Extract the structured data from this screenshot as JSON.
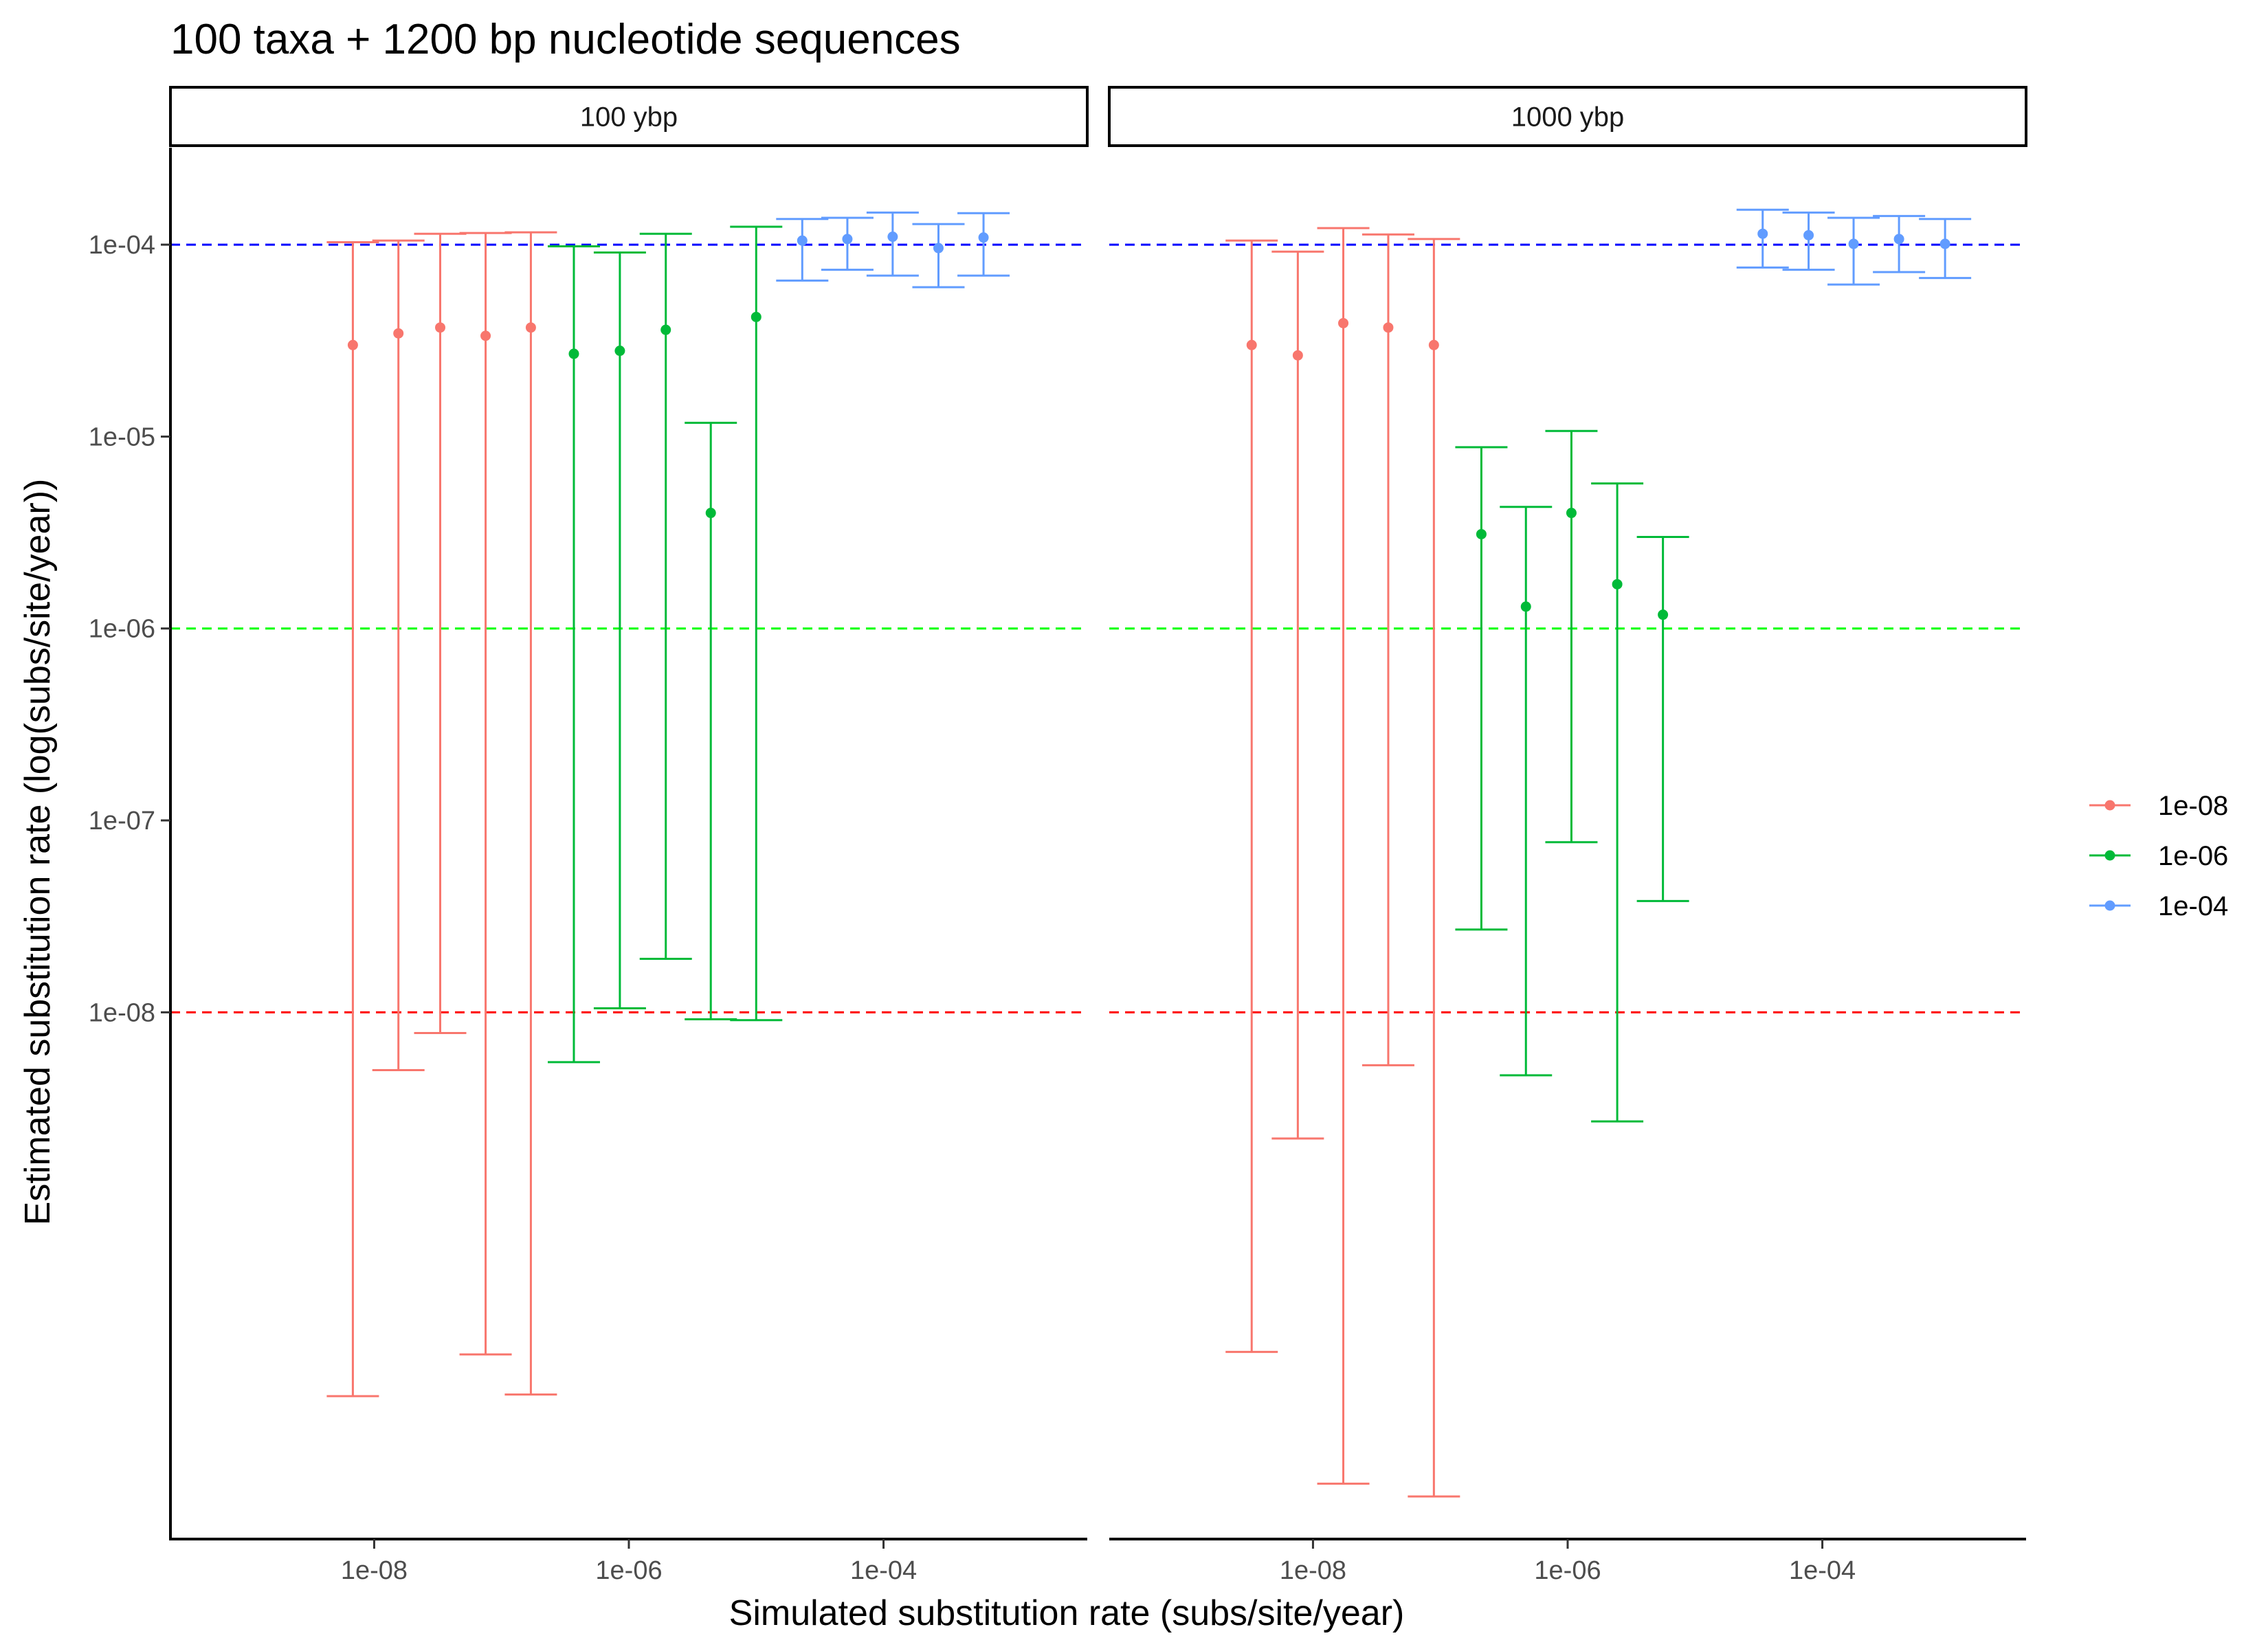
{
  "chart_data": {
    "type": "errorbar",
    "title": "100 taxa + 1200 bp nucleotide sequences",
    "xlabel": "Simulated substitution rate (subs/site/year)",
    "ylabel": "Estimated substitution rate (log(subs/site/year))",
    "x_scale": "log10",
    "y_scale": "log10",
    "x_ticks": [
      "1e-08",
      "1e-06",
      "1e-04"
    ],
    "y_ticks": [
      "1e-08",
      "1e-07",
      "1e-06",
      "1e-05",
      "1e-04"
    ],
    "ylim": [
      1.8e-11,
      0.00032
    ],
    "legend": {
      "position": "right",
      "entries": [
        "1e-08",
        "1e-06",
        "1e-04"
      ]
    },
    "colors": {
      "1e-08": "#F8766D",
      "1e-06": "#00BA38",
      "1e-04": "#619CFF"
    },
    "reference_lines": [
      {
        "y": 0.0001,
        "color": "#0000FF",
        "style": "dashed"
      },
      {
        "y": 1e-06,
        "color": "#00FF00",
        "style": "dashed"
      },
      {
        "y": 1e-08,
        "color": "#FF0000",
        "style": "dashed"
      }
    ],
    "panels": [
      {
        "label": "100 ybp",
        "series": [
          {
            "name": "1e-08",
            "points": [
              {
                "x": 6.8e-09,
                "y": 3e-05,
                "lo": 1e-10,
                "hi": 0.000103
              },
              {
                "x": 1.55e-08,
                "y": 3.45e-05,
                "lo": 5e-09,
                "hi": 0.000105
              },
              {
                "x": 3.3e-08,
                "y": 3.7e-05,
                "lo": 7.8e-09,
                "hi": 0.000114
              },
              {
                "x": 7.5e-08,
                "y": 3.35e-05,
                "lo": 1.65e-10,
                "hi": 0.000115
              },
              {
                "x": 1.7e-07,
                "y": 3.7e-05,
                "lo": 1.02e-10,
                "hi": 0.000116
              }
            ]
          },
          {
            "name": "1e-06",
            "points": [
              {
                "x": 3.7e-07,
                "y": 2.7e-05,
                "lo": 5.5e-09,
                "hi": 9.8e-05
              },
              {
                "x": 8.5e-07,
                "y": 2.8e-05,
                "lo": 1.05e-08,
                "hi": 9.1e-05
              },
              {
                "x": 1.95e-06,
                "y": 3.6e-05,
                "lo": 1.9e-08,
                "hi": 0.000114
              },
              {
                "x": 4.4e-06,
                "y": 4e-06,
                "lo": 9.2e-09,
                "hi": 1.18e-05
              },
              {
                "x": 1e-05,
                "y": 4.2e-05,
                "lo": 9.1e-09,
                "hi": 0.000124
              }
            ]
          },
          {
            "name": "1e-04",
            "points": [
              {
                "x": 2.3e-05,
                "y": 0.000105,
                "lo": 6.5e-05,
                "hi": 0.000136
              },
              {
                "x": 5.2e-05,
                "y": 0.000107,
                "lo": 7.4e-05,
                "hi": 0.000138
              },
              {
                "x": 0.000118,
                "y": 0.00011,
                "lo": 6.9e-05,
                "hi": 0.000147
              },
              {
                "x": 0.00027,
                "y": 9.6e-05,
                "lo": 6e-05,
                "hi": 0.000128
              },
              {
                "x": 0.00061,
                "y": 0.000109,
                "lo": 6.9e-05,
                "hi": 0.000146
              }
            ]
          }
        ]
      },
      {
        "label": "1000 ybp",
        "series": [
          {
            "name": "1e-08",
            "points": [
              {
                "x": 3.3e-09,
                "y": 3e-05,
                "lo": 1.7e-10,
                "hi": 0.000105
              },
              {
                "x": 7.6e-09,
                "y": 2.65e-05,
                "lo": 2.2e-09,
                "hi": 9.2e-05
              },
              {
                "x": 1.73e-08,
                "y": 3.9e-05,
                "lo": 3.5e-11,
                "hi": 0.000122
              },
              {
                "x": 3.9e-08,
                "y": 3.7e-05,
                "lo": 5.3e-09,
                "hi": 0.000113
              },
              {
                "x": 8.9e-08,
                "y": 3e-05,
                "lo": 3e-11,
                "hi": 0.000107
              }
            ]
          },
          {
            "name": "1e-06",
            "points": [
              {
                "x": 2.1e-07,
                "y": 3.1e-06,
                "lo": 2.7e-08,
                "hi": 8.8e-06
              },
              {
                "x": 4.7e-07,
                "y": 1.3e-06,
                "lo": 4.7e-09,
                "hi": 4.3e-06
              },
              {
                "x": 1.07e-06,
                "y": 4e-06,
                "lo": 7.7e-08,
                "hi": 1.07e-05
              },
              {
                "x": 2.45e-06,
                "y": 1.7e-06,
                "lo": 2.7e-09,
                "hi": 5.7e-06
              },
              {
                "x": 5.6e-06,
                "y": 1.18e-06,
                "lo": 3.8e-08,
                "hi": 3e-06
              }
            ]
          },
          {
            "name": "1e-04",
            "points": [
              {
                "x": 3.4e-05,
                "y": 0.000114,
                "lo": 7.6e-05,
                "hi": 0.000152
              },
              {
                "x": 7.8e-05,
                "y": 0.000112,
                "lo": 7.4e-05,
                "hi": 0.000147
              },
              {
                "x": 0.000176,
                "y": 0.000101,
                "lo": 6.2e-05,
                "hi": 0.000138
              },
              {
                "x": 0.0004,
                "y": 0.000107,
                "lo": 7.2e-05,
                "hi": 0.000141
              },
              {
                "x": 0.00092,
                "y": 0.000101,
                "lo": 6.7e-05,
                "hi": 0.000136
              }
            ]
          }
        ]
      }
    ]
  }
}
